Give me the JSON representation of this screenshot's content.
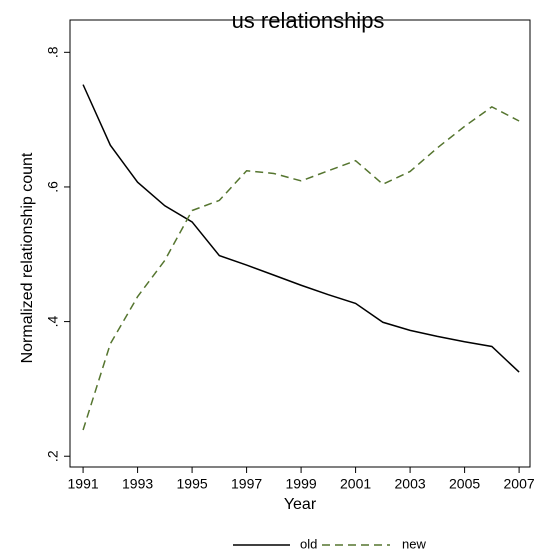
{
  "chart_data": {
    "type": "line",
    "title": "us relationships",
    "x_label": "Year",
    "y_label": "Normalized relationship count",
    "x": [
      1991,
      1992,
      1993,
      1994,
      1995,
      1996,
      1997,
      1998,
      1999,
      2000,
      2001,
      2002,
      2003,
      2004,
      2005,
      2006,
      2007
    ],
    "series": [
      {
        "name": "old",
        "color": "#000000",
        "style": "solid",
        "values": [
          0.752,
          0.662,
          0.607,
          0.572,
          0.548,
          0.498,
          0.484,
          0.469,
          0.454,
          0.44,
          0.427,
          0.399,
          0.387,
          0.378,
          0.37,
          0.363,
          0.325
        ]
      },
      {
        "name": "new",
        "color": "#55752f",
        "style": "dashed",
        "values": [
          0.239,
          0.367,
          0.437,
          0.491,
          0.565,
          0.58,
          0.624,
          0.62,
          0.609,
          0.624,
          0.639,
          0.604,
          0.623,
          0.658,
          0.69,
          0.719,
          0.698
        ]
      }
    ],
    "xlim": [
      1990.52,
      2007.4
    ],
    "xticks": [
      1991,
      1993,
      1995,
      1997,
      1999,
      2001,
      2003,
      2005,
      2007
    ],
    "ylim": [
      0.184,
      0.848
    ],
    "yticks": [
      {
        "value": 0.2,
        "label": ".2"
      },
      {
        "value": 0.4,
        "label": ".4"
      },
      {
        "value": 0.6,
        "label": ".6"
      },
      {
        "value": 0.8,
        "label": ".8"
      }
    ],
    "grid": false,
    "legend": "bottom"
  }
}
